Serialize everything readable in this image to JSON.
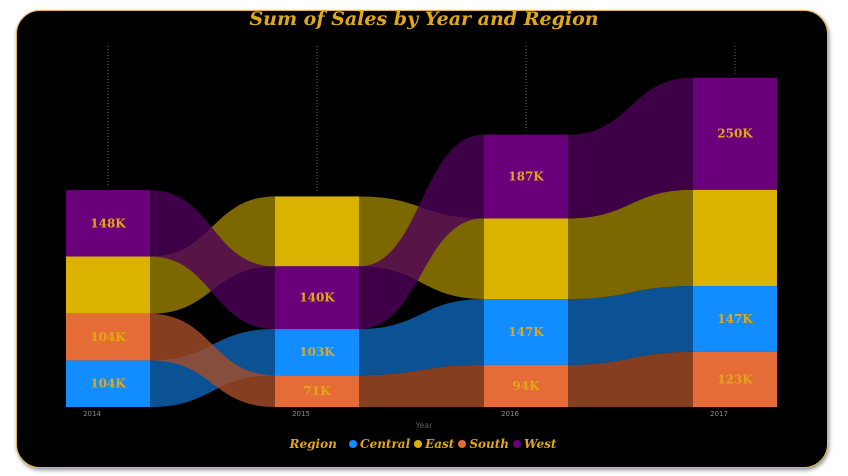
{
  "chart_data": {
    "type": "ribbon",
    "title": "Sum of Sales by Year and Region",
    "xlabel": "Year",
    "categories": [
      "2014",
      "2015",
      "2016",
      "2017"
    ],
    "legend_title": "Region",
    "legend_position": "bottom",
    "series": [
      {
        "name": "Central",
        "color": "#118dff",
        "values": [
          104,
          103,
          147,
          147
        ],
        "labels": [
          "104K",
          "103K",
          "147K",
          "147K"
        ]
      },
      {
        "name": "East",
        "color": "#d9b300",
        "values": [
          128,
          156,
          180,
          215
        ],
        "labels": [
          "",
          "",
          "",
          ""
        ]
      },
      {
        "name": "South",
        "color": "#e66c37",
        "values": [
          104,
          71,
          94,
          123
        ],
        "labels": [
          "104K",
          "71K",
          "94K",
          "123K"
        ]
      },
      {
        "name": "West",
        "color": "#6b007b",
        "values": [
          148,
          140,
          187,
          250
        ],
        "labels": [
          "148K",
          "140K",
          "187K",
          "250K"
        ]
      }
    ],
    "stack_order": [
      [
        "Central",
        "South",
        "East",
        "West"
      ],
      [
        "South",
        "Central",
        "West",
        "East"
      ],
      [
        "South",
        "Central",
        "East",
        "West"
      ],
      [
        "South",
        "Central",
        "East",
        "West"
      ]
    ],
    "label_color": "#e0a818"
  }
}
